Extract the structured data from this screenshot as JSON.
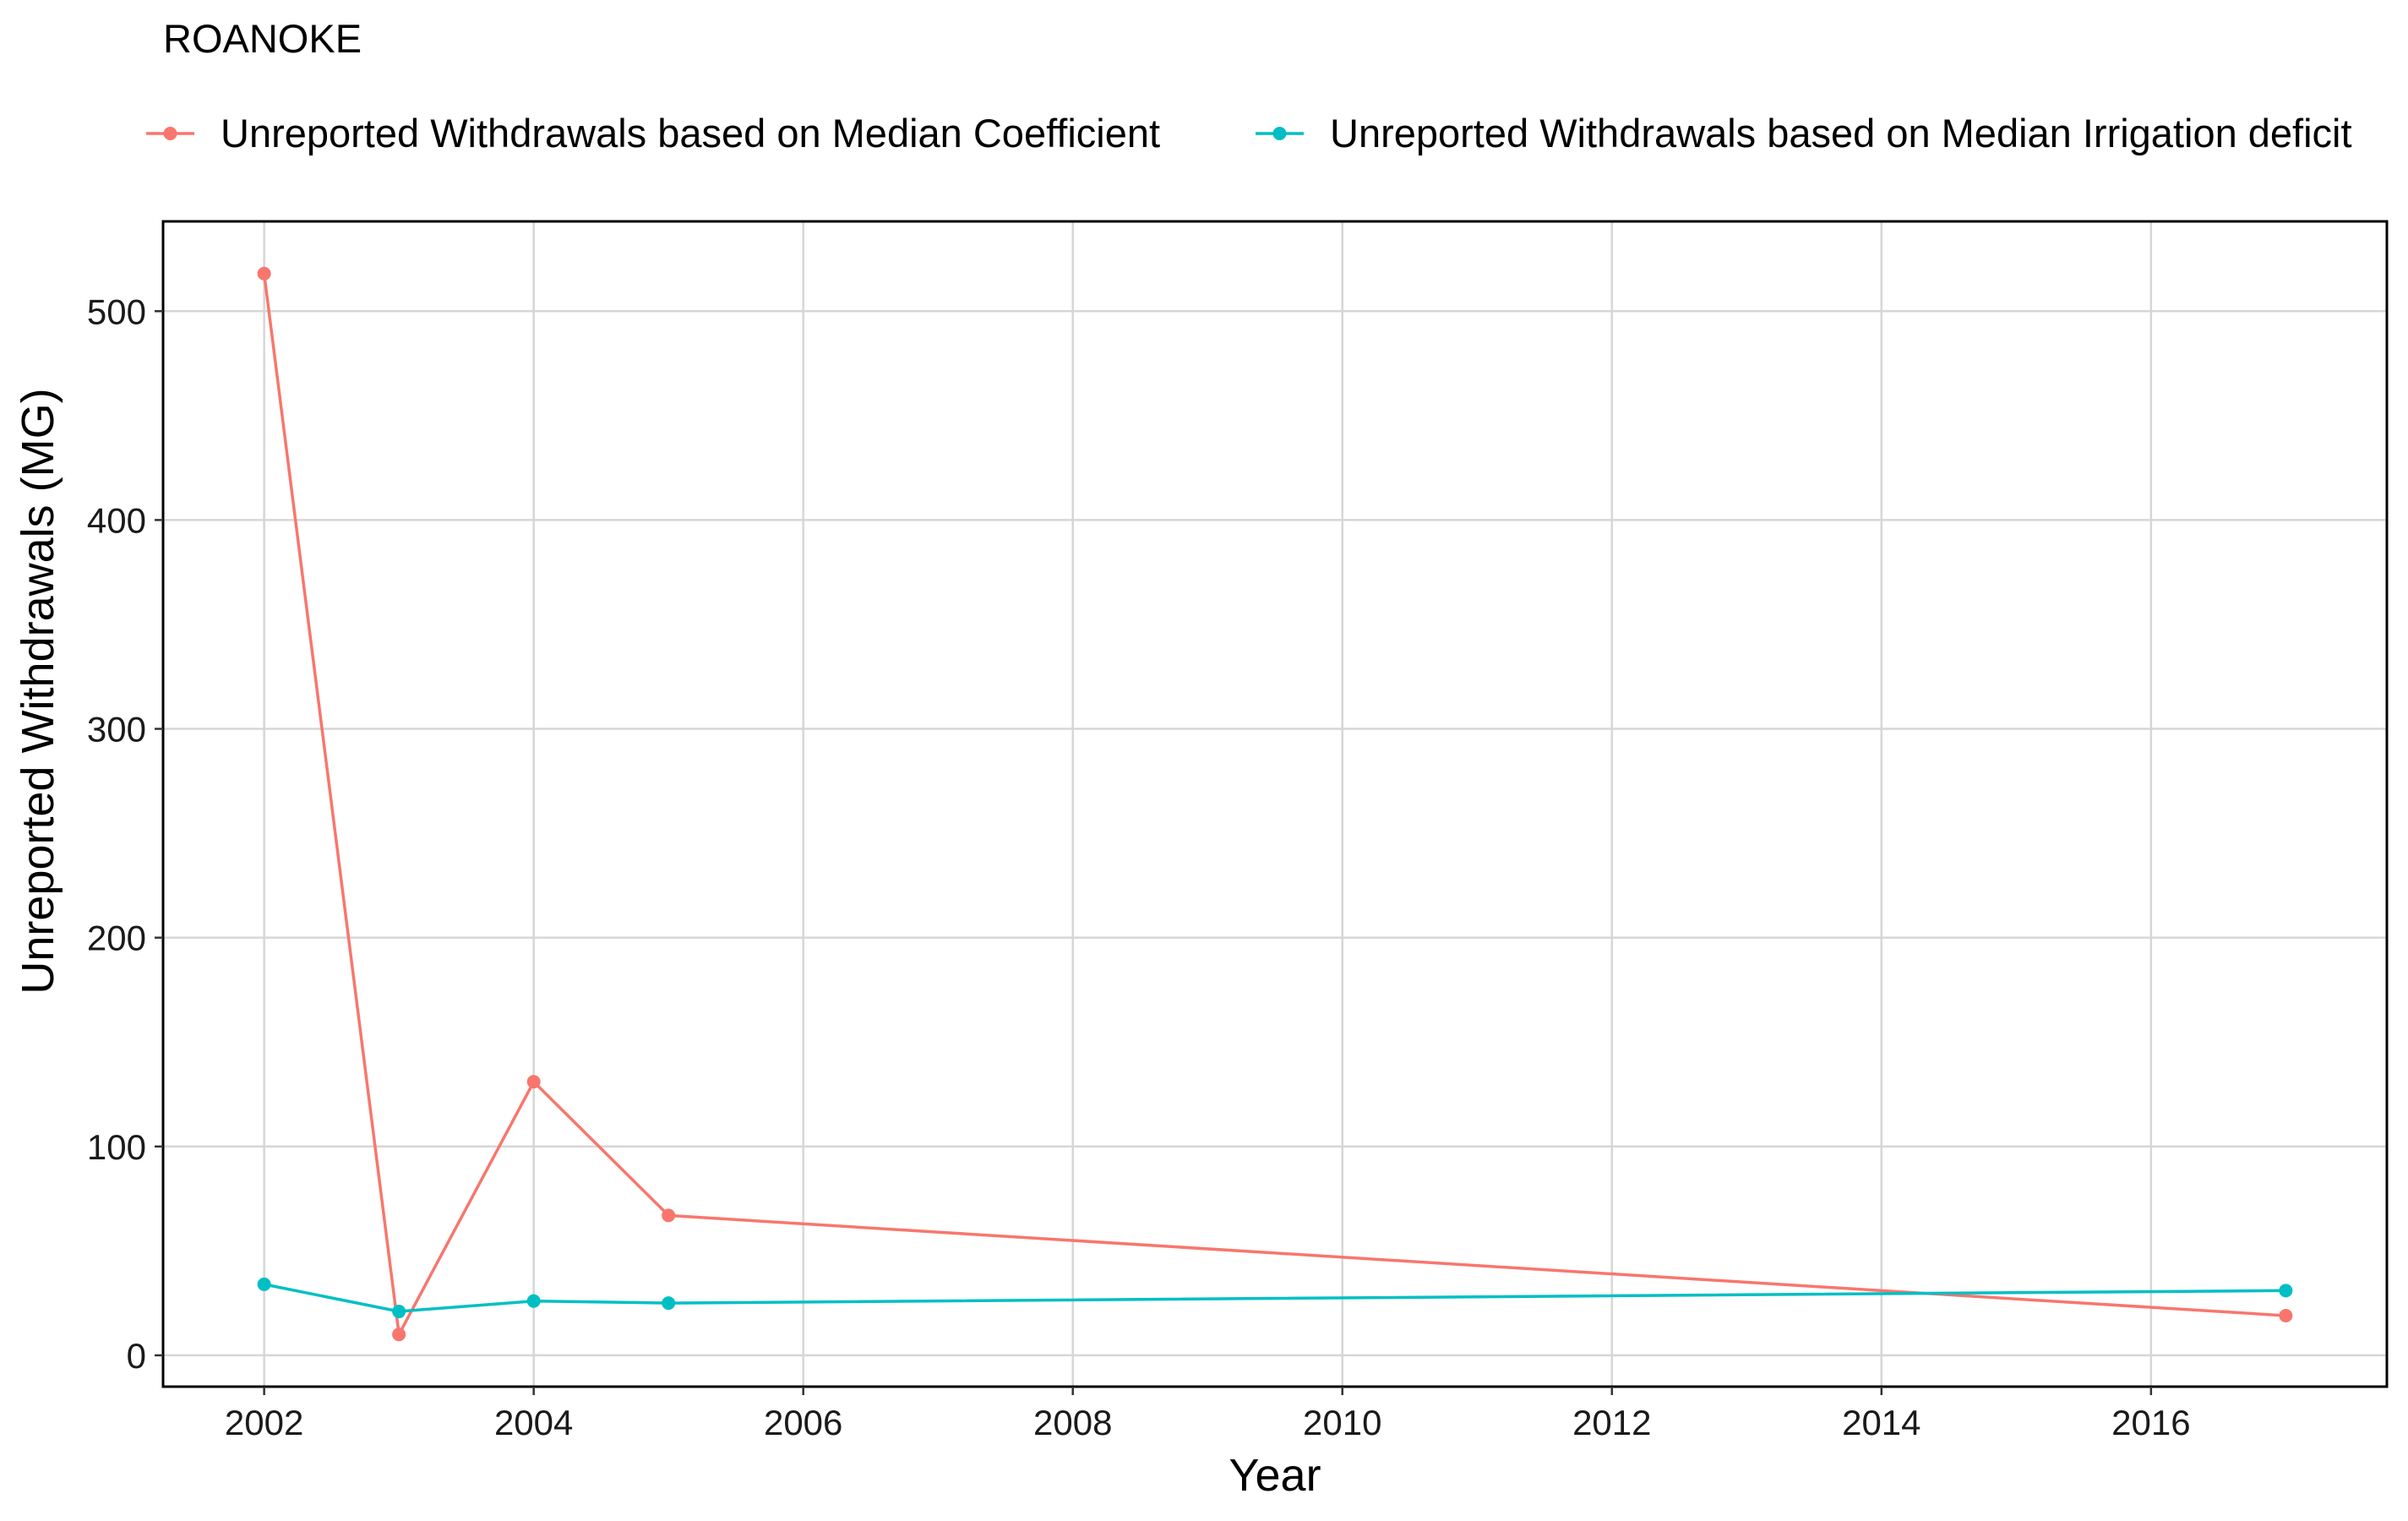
{
  "chart_data": {
    "type": "line",
    "title": "ROANOKE",
    "xlabel": "Year",
    "ylabel": "Unreported Withdrawals (MG)",
    "xlim": [
      2001.25,
      2017.75
    ],
    "ylim": [
      -15,
      543
    ],
    "x_ticks": [
      2002,
      2004,
      2006,
      2008,
      2010,
      2012,
      2014,
      2016
    ],
    "x_tick_labels": [
      "2002",
      "2004",
      "2006",
      "2008",
      "2010",
      "2012",
      "2014",
      "2016"
    ],
    "y_ticks": [
      0,
      100,
      200,
      300,
      400,
      500
    ],
    "y_tick_labels": [
      "0",
      "100",
      "200",
      "300",
      "400",
      "500"
    ],
    "grid": true,
    "legend_position": "top",
    "series": [
      {
        "name": "Unreported Withdrawals based on Median Coefficient",
        "color": "#F8766D",
        "points": [
          {
            "x": 2002,
            "y": 518
          },
          {
            "x": 2003,
            "y": 10
          },
          {
            "x": 2004,
            "y": 131
          },
          {
            "x": 2005,
            "y": 67
          },
          {
            "x": 2017,
            "y": 19
          }
        ]
      },
      {
        "name": "Unreported Withdrawals based on Median Irrigation deficit",
        "color": "#00BFC4",
        "points": [
          {
            "x": 2002,
            "y": 34
          },
          {
            "x": 2003,
            "y": 21
          },
          {
            "x": 2004,
            "y": 26
          },
          {
            "x": 2005,
            "y": 25
          },
          {
            "x": 2017,
            "y": 31
          }
        ]
      }
    ]
  }
}
